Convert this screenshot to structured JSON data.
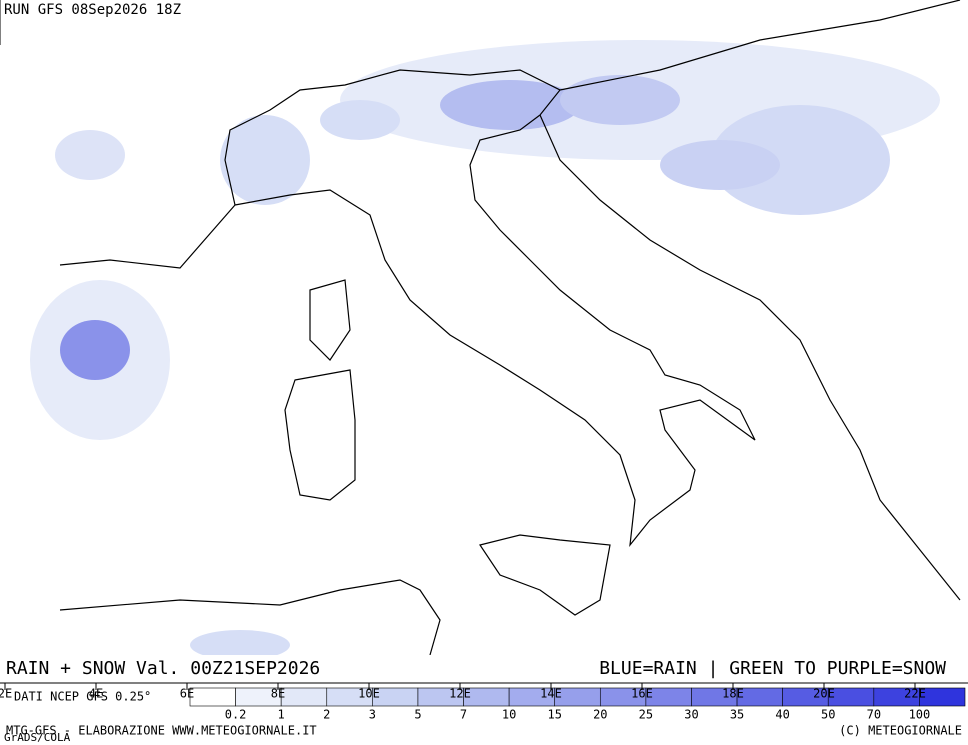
{
  "header": {
    "run": "RUN GFS 08Sep2026 18Z"
  },
  "legend": {
    "title": "RAIN + SNOW Val. 00Z21SEP2026",
    "key": "BLUE=RAIN | GREEN TO PURPLE=SNOW",
    "source": "DATI NCEP GFS 0.25°"
  },
  "map": {
    "longitudes": [
      "2E",
      "4E",
      "6E",
      "8E",
      "10E",
      "12E",
      "14E",
      "16E",
      "18E",
      "20E",
      "22E"
    ]
  },
  "colorbar": {
    "thresholds": [
      "0.2",
      "1",
      "2",
      "3",
      "5",
      "7",
      "10",
      "15",
      "20",
      "25",
      "30",
      "35",
      "40",
      "50",
      "70",
      "100"
    ],
    "colors": [
      "#ffffff",
      "#eef2fb",
      "#e2e8f8",
      "#d6def6",
      "#c9d3f3",
      "#bcc6f1",
      "#afb9ef",
      "#a3acee",
      "#969feb",
      "#8a92ea",
      "#7d84e8",
      "#7077e6",
      "#636ae4",
      "#565ce3",
      "#4a4fe1",
      "#3d42df",
      "#2f34dd"
    ]
  },
  "footer": {
    "left": "MTG-GFS - ELABORAZIONE WWW.METEOGIORNALE.IT",
    "right": "(C) METEOGIORNALE",
    "grads": "GrADS/COLA"
  }
}
